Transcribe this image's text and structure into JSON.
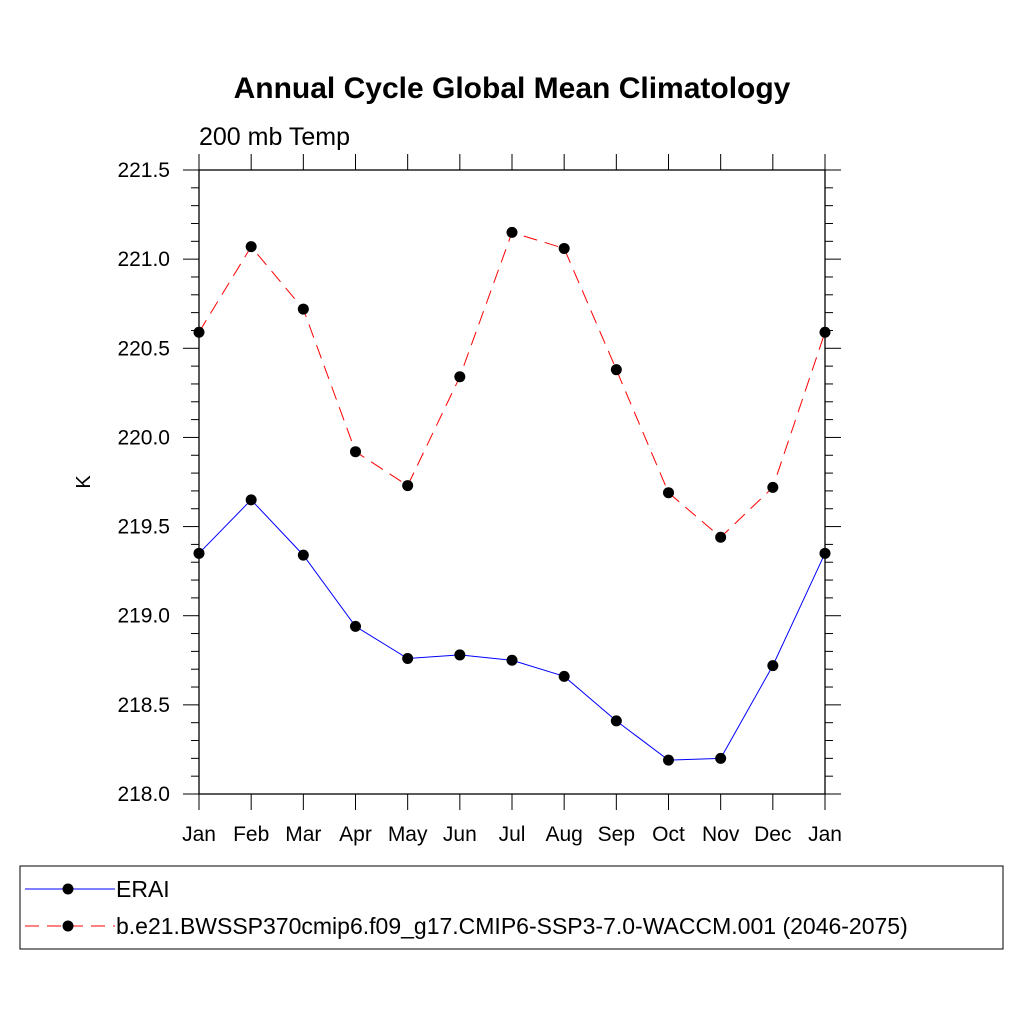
{
  "chart_data": {
    "type": "line",
    "title": "Annual Cycle Global Mean Climatology",
    "subtitle": "200 mb Temp",
    "xlabel": "",
    "ylabel": "K",
    "categories": [
      "Jan",
      "Feb",
      "Mar",
      "Apr",
      "May",
      "Jun",
      "Jul",
      "Aug",
      "Sep",
      "Oct",
      "Nov",
      "Dec",
      "Jan"
    ],
    "ylim": [
      218.0,
      221.5
    ],
    "yticks": [
      "218.0",
      "218.5",
      "219.0",
      "219.5",
      "220.0",
      "220.5",
      "221.0",
      "221.5"
    ],
    "series": [
      {
        "name": "ERAI",
        "color": "#0000ff",
        "dash": "solid",
        "values": [
          219.35,
          219.65,
          219.34,
          218.94,
          218.76,
          218.78,
          218.75,
          218.66,
          218.41,
          218.19,
          218.2,
          218.72,
          219.35
        ]
      },
      {
        "name": "b.e21.BWSSP370cmip6.f09_g17.CMIP6-SSP3-7.0-WACCM.001 (2046-2075)",
        "color": "#ff0000",
        "dash": "dashed",
        "values": [
          220.59,
          221.07,
          220.72,
          219.92,
          219.73,
          220.34,
          221.15,
          221.06,
          220.38,
          219.69,
          219.44,
          219.72,
          220.59
        ]
      }
    ],
    "marker_color": "#000000",
    "grid": false,
    "legend_position": "bottom"
  }
}
